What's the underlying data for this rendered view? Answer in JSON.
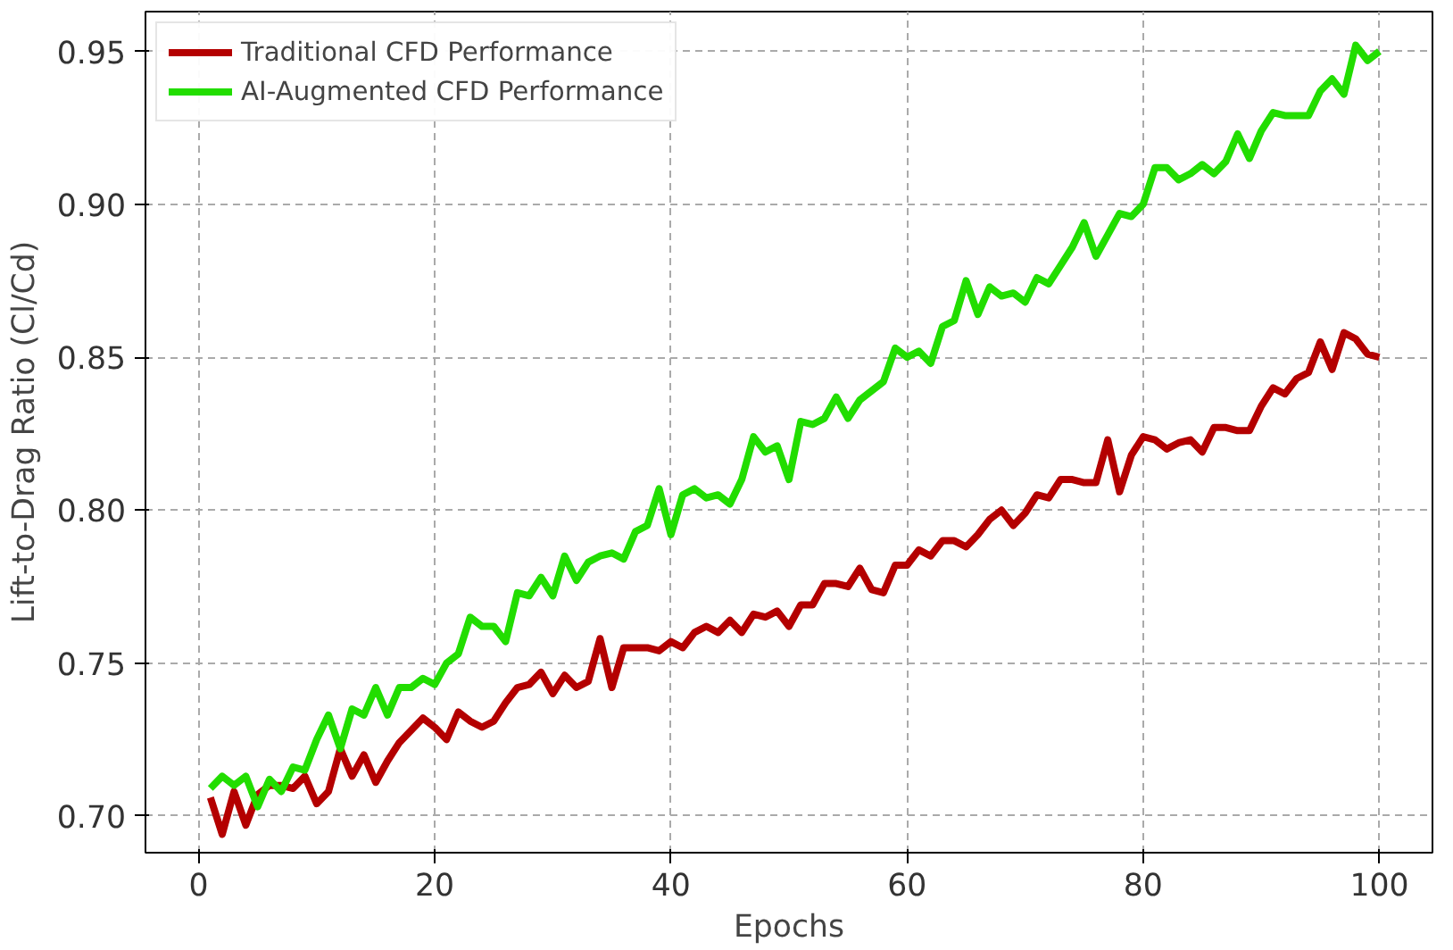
{
  "chart_data": {
    "type": "line",
    "xlabel": "Epochs",
    "ylabel": "Lift-to-Drag Ratio (Cl/Cd)",
    "x": [
      1,
      2,
      3,
      4,
      5,
      6,
      7,
      8,
      9,
      10,
      11,
      12,
      13,
      14,
      15,
      16,
      17,
      18,
      19,
      20,
      21,
      22,
      23,
      24,
      25,
      26,
      27,
      28,
      29,
      30,
      31,
      32,
      33,
      34,
      35,
      36,
      37,
      38,
      39,
      40,
      41,
      42,
      43,
      44,
      45,
      46,
      47,
      48,
      49,
      50,
      51,
      52,
      53,
      54,
      55,
      56,
      57,
      58,
      59,
      60,
      61,
      62,
      63,
      64,
      65,
      66,
      67,
      68,
      69,
      70,
      71,
      72,
      73,
      74,
      75,
      76,
      77,
      78,
      79,
      80,
      81,
      82,
      83,
      84,
      85,
      86,
      87,
      88,
      89,
      90,
      91,
      92,
      93,
      94,
      95,
      96,
      97,
      98,
      99,
      100
    ],
    "series": [
      {
        "name": "Traditional CFD Performance",
        "color": "#b40000",
        "values": [
          0.706,
          0.694,
          0.708,
          0.697,
          0.707,
          0.71,
          0.71,
          0.709,
          0.713,
          0.704,
          0.708,
          0.722,
          0.713,
          0.72,
          0.711,
          0.718,
          0.724,
          0.728,
          0.732,
          0.729,
          0.725,
          0.734,
          0.731,
          0.729,
          0.731,
          0.737,
          0.742,
          0.743,
          0.747,
          0.74,
          0.746,
          0.742,
          0.744,
          0.758,
          0.742,
          0.755,
          0.755,
          0.755,
          0.754,
          0.757,
          0.755,
          0.76,
          0.762,
          0.76,
          0.764,
          0.76,
          0.766,
          0.765,
          0.767,
          0.762,
          0.769,
          0.769,
          0.776,
          0.776,
          0.775,
          0.781,
          0.774,
          0.773,
          0.782,
          0.782,
          0.787,
          0.785,
          0.79,
          0.79,
          0.788,
          0.792,
          0.797,
          0.8,
          0.795,
          0.799,
          0.805,
          0.804,
          0.81,
          0.81,
          0.809,
          0.809,
          0.823,
          0.806,
          0.818,
          0.824,
          0.823,
          0.82,
          0.822,
          0.823,
          0.819,
          0.827,
          0.827,
          0.826,
          0.826,
          0.834,
          0.84,
          0.838,
          0.843,
          0.845,
          0.855,
          0.846,
          0.858,
          0.856,
          0.851,
          0.85
        ]
      },
      {
        "name": "AI-Augmented CFD Performance",
        "color": "#22dd00",
        "values": [
          0.709,
          0.713,
          0.71,
          0.713,
          0.703,
          0.712,
          0.708,
          0.716,
          0.715,
          0.725,
          0.733,
          0.722,
          0.735,
          0.733,
          0.742,
          0.733,
          0.742,
          0.742,
          0.745,
          0.743,
          0.75,
          0.753,
          0.765,
          0.762,
          0.762,
          0.757,
          0.773,
          0.772,
          0.778,
          0.772,
          0.785,
          0.777,
          0.783,
          0.785,
          0.786,
          0.784,
          0.793,
          0.795,
          0.807,
          0.792,
          0.805,
          0.807,
          0.804,
          0.805,
          0.802,
          0.81,
          0.824,
          0.819,
          0.821,
          0.81,
          0.829,
          0.828,
          0.83,
          0.837,
          0.83,
          0.836,
          0.839,
          0.842,
          0.853,
          0.85,
          0.852,
          0.848,
          0.86,
          0.862,
          0.875,
          0.864,
          0.873,
          0.87,
          0.871,
          0.868,
          0.876,
          0.874,
          0.88,
          0.886,
          0.894,
          0.883,
          0.89,
          0.897,
          0.896,
          0.9,
          0.912,
          0.912,
          0.908,
          0.91,
          0.913,
          0.91,
          0.914,
          0.923,
          0.915,
          0.924,
          0.93,
          0.929,
          0.929,
          0.929,
          0.937,
          0.941,
          0.936,
          0.952,
          0.947,
          0.95
        ]
      }
    ],
    "xlim": [
      -4.5,
      104.5
    ],
    "ylim": [
      0.688,
      0.963
    ],
    "xticks": [
      0,
      20,
      40,
      60,
      80,
      100
    ],
    "yticks": [
      {
        "value": 0.7,
        "label": "0.70"
      },
      {
        "value": 0.75,
        "label": "0.75"
      },
      {
        "value": 0.8,
        "label": "0.80"
      },
      {
        "value": 0.85,
        "label": "0.85"
      },
      {
        "value": 0.9,
        "label": "0.90"
      },
      {
        "value": 0.95,
        "label": "0.95"
      }
    ],
    "grid": true,
    "legend": "top left",
    "line_style": "solid"
  }
}
